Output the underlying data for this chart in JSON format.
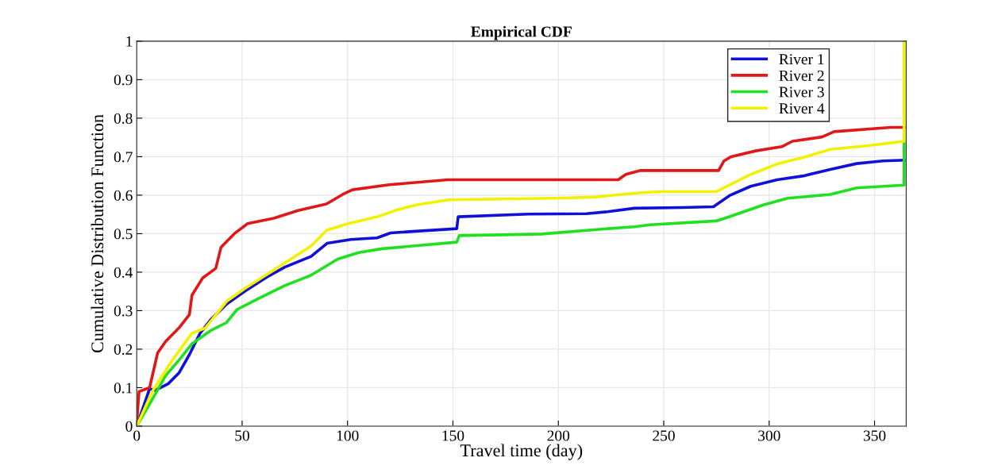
{
  "chart_data": {
    "type": "line",
    "title": "Empirical CDF",
    "xlabel": "Travel time (day)",
    "ylabel": "Cumulative Distribution Function",
    "xlim": [
      0,
      365
    ],
    "xticks": [
      0,
      50,
      100,
      150,
      200,
      250,
      300,
      350
    ],
    "ylim": [
      0,
      1
    ],
    "yticks": [
      0,
      0.1,
      0.2,
      0.3,
      0.4,
      0.5,
      0.6,
      0.7,
      0.8,
      0.9,
      1
    ],
    "grid": true,
    "legend": "top right",
    "marker": "none",
    "line_style": "solid",
    "series": [
      {
        "name": "River 1",
        "color": "#1010d8",
        "x": [
          0,
          6.1,
          8.7,
          14.9,
          20,
          25,
          30,
          35,
          42.6,
          51.4,
          61.4,
          70.2,
          82.7,
          90.3,
          101.6,
          114,
          120.4,
          151.8,
          152.5,
          185.8,
          213.4,
          223.4,
          236,
          258.6,
          273.6,
          281.2,
          291.2,
          303.8,
          316.3,
          329,
          341.5,
          354,
          364
        ],
        "values": [
          0,
          0.097,
          0.093,
          0.11,
          0.138,
          0.186,
          0.241,
          0.276,
          0.317,
          0.351,
          0.386,
          0.413,
          0.441,
          0.475,
          0.485,
          0.489,
          0.502,
          0.513,
          0.544,
          0.551,
          0.552,
          0.557,
          0.566,
          0.568,
          0.57,
          0.599,
          0.623,
          0.64,
          0.65,
          0.667,
          0.682,
          0.689,
          0.691
        ]
      },
      {
        "name": "River 2",
        "color": "#e01818",
        "x": [
          0,
          1.1,
          6.1,
          9.9,
          13.7,
          20,
          25,
          26.2,
          31.3,
          37.5,
          40,
          46.3,
          52.6,
          65,
          76.5,
          90,
          97.7,
          102.3,
          119.8,
          147.5,
          228.4,
          232,
          239,
          276,
          278.6,
          282,
          293.6,
          306,
          311,
          325,
          330.8,
          357.7,
          364
        ],
        "values": [
          0.01,
          0.09,
          0.1,
          0.19,
          0.22,
          0.255,
          0.29,
          0.34,
          0.385,
          0.41,
          0.465,
          0.5,
          0.526,
          0.54,
          0.56,
          0.577,
          0.602,
          0.614,
          0.627,
          0.64,
          0.64,
          0.654,
          0.664,
          0.664,
          0.689,
          0.7,
          0.715,
          0.726,
          0.74,
          0.751,
          0.765,
          0.776,
          0.776
        ]
      },
      {
        "name": "River 3",
        "color": "#20e020",
        "x": [
          0,
          7.4,
          13.7,
          21.2,
          26.2,
          35,
          42.6,
          47.6,
          57.6,
          70.2,
          82.7,
          95.3,
          105.3,
          116.5,
          151.8,
          153,
          192,
          223.4,
          236,
          243.5,
          274.9,
          281.2,
          297.5,
          308.8,
          329,
          341.5,
          364,
          364
        ],
        "values": [
          0,
          0.07,
          0.131,
          0.179,
          0.214,
          0.248,
          0.269,
          0.303,
          0.331,
          0.365,
          0.392,
          0.434,
          0.451,
          0.461,
          0.478,
          0.495,
          0.499,
          0.513,
          0.518,
          0.523,
          0.533,
          0.544,
          0.575,
          0.592,
          0.602,
          0.619,
          0.626,
          0.736
        ]
      },
      {
        "name": "River 4",
        "color": "#f2f200",
        "x": [
          0,
          7.4,
          16.2,
          26.1,
          32.5,
          42.6,
          51.4,
          65.2,
          82.7,
          90.2,
          100.3,
          114.2,
          123,
          133,
          148,
          198.3,
          217,
          236,
          247.3,
          274.8,
          278.6,
          291.3,
          303.8,
          316.3,
          329,
          347.8,
          364,
          364
        ],
        "values": [
          0,
          0.09,
          0.166,
          0.241,
          0.255,
          0.324,
          0.358,
          0.406,
          0.468,
          0.509,
          0.526,
          0.544,
          0.561,
          0.575,
          0.588,
          0.592,
          0.595,
          0.605,
          0.609,
          0.609,
          0.619,
          0.654,
          0.681,
          0.698,
          0.719,
          0.729,
          0.74,
          1
        ]
      }
    ]
  }
}
